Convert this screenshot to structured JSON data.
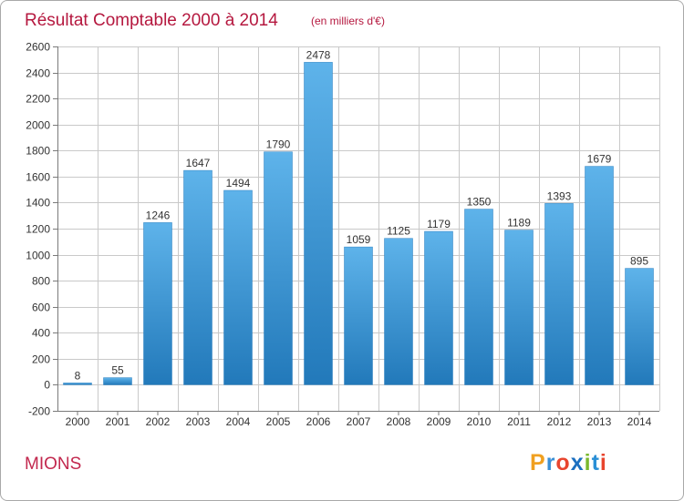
{
  "chart_data": {
    "type": "bar",
    "title": "Résultat Comptable 2000 à 2014",
    "subtitle": "(en milliers d'€)",
    "categories": [
      "2000",
      "2001",
      "2002",
      "2003",
      "2004",
      "2005",
      "2006",
      "2007",
      "2008",
      "2009",
      "2010",
      "2011",
      "2012",
      "2013",
      "2014"
    ],
    "values": [
      8,
      55,
      1246,
      1647,
      1494,
      1790,
      2478,
      1059,
      1125,
      1179,
      1350,
      1189,
      1393,
      1679,
      895
    ],
    "ylim": [
      -200,
      2600
    ],
    "yticks": [
      -200,
      0,
      200,
      400,
      600,
      800,
      1000,
      1200,
      1400,
      1600,
      1800,
      2000,
      2200,
      2400,
      2600
    ],
    "xlabel": "",
    "ylabel": "",
    "grid": true,
    "bar_color_top": "#5eb3ea",
    "bar_color_bottom": "#2279ba"
  },
  "place": "MIONS",
  "logo": {
    "text": "Proxiti",
    "letter_colors": [
      "#f0a020",
      "#3a8fd6",
      "#e8452e",
      "#1a6fc0",
      "#7ab82e",
      "#2a8fd6",
      "#e8452e"
    ]
  },
  "colors": {
    "title": "#b5183f",
    "grid": "#c9c9c9"
  }
}
